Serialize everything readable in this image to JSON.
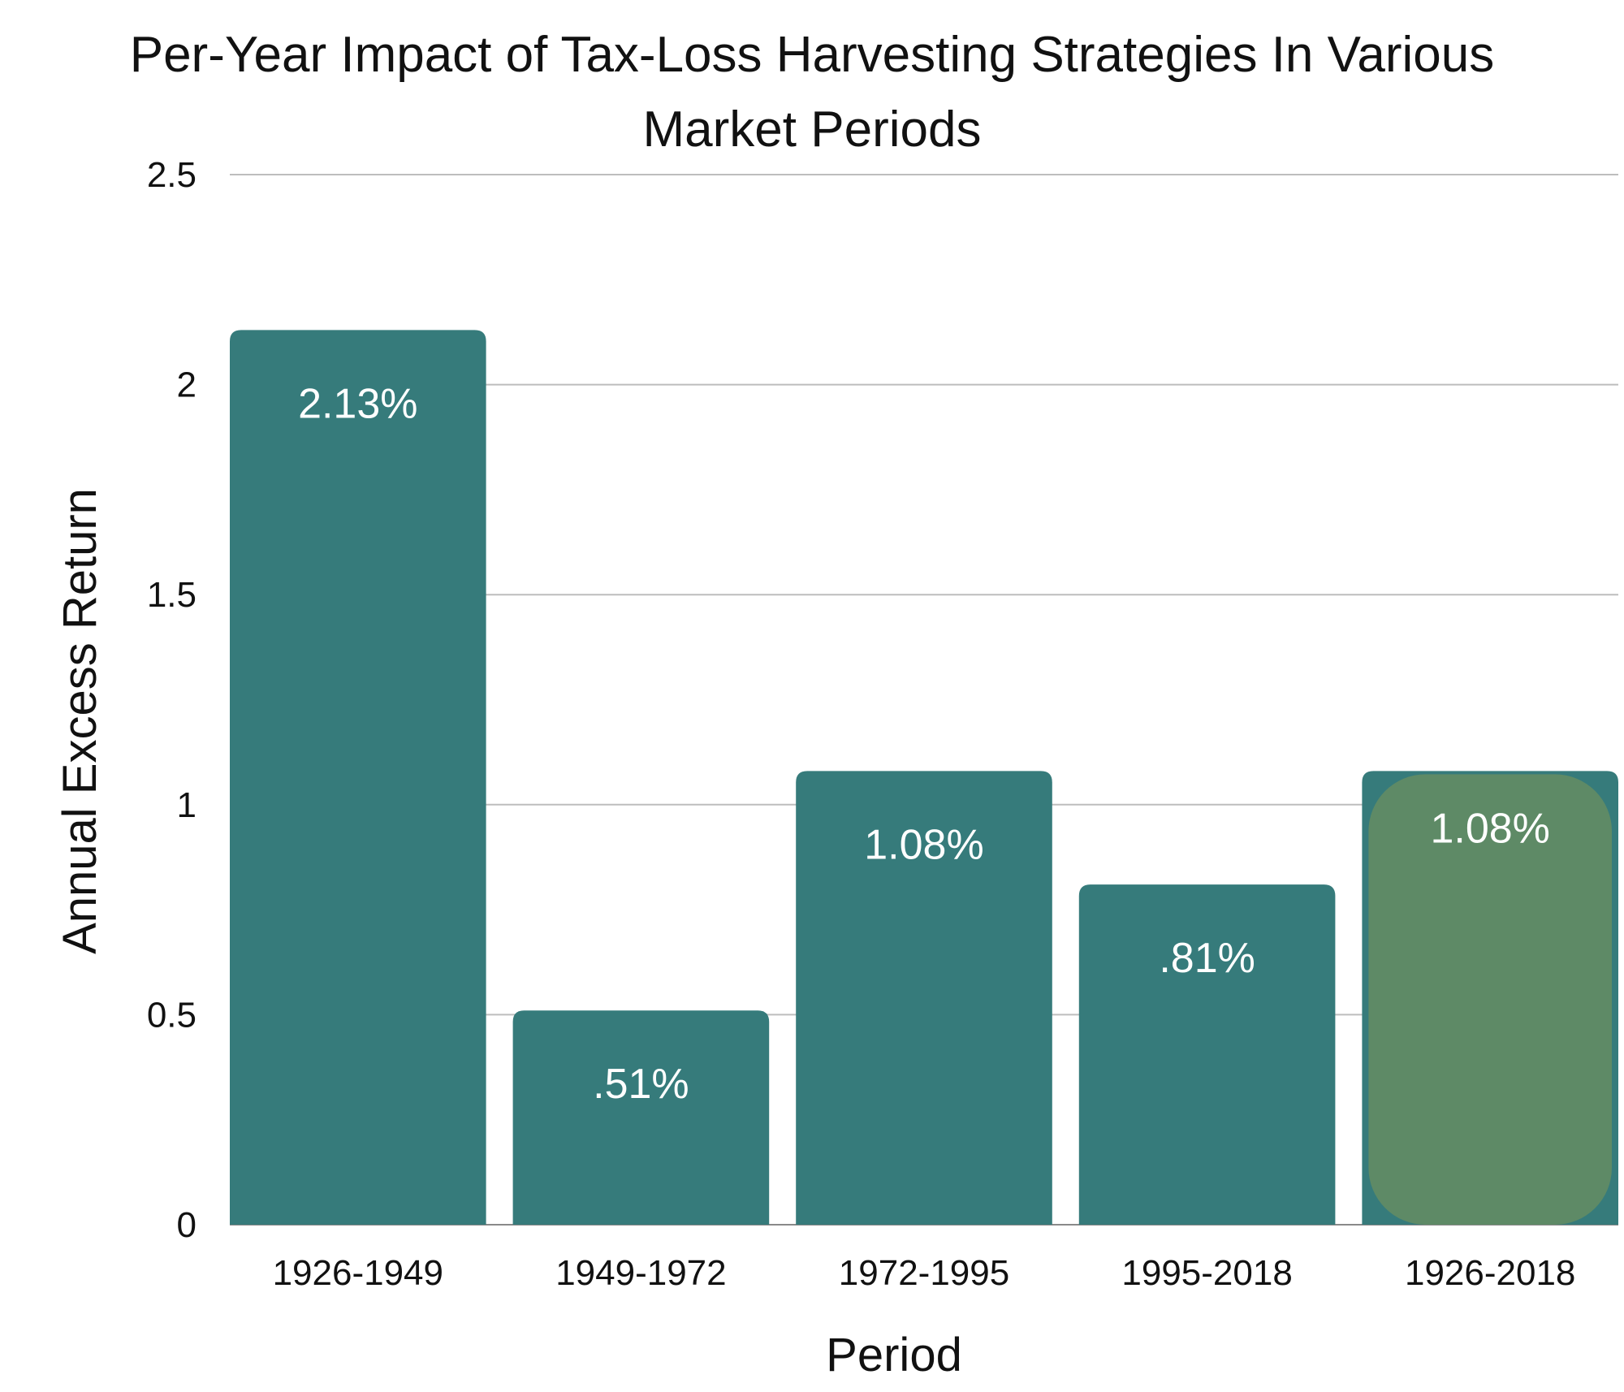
{
  "chart_data": {
    "type": "bar",
    "title_lines": [
      "Per-Year Impact of Tax-Loss Harvesting Strategies In Various",
      "Market Periods"
    ],
    "xlabel": "Period",
    "ylabel": "Annual Excess Return",
    "categories": [
      "1926-1949",
      "1949-1972",
      "1972-1995",
      "1995-2018",
      "1926-2018"
    ],
    "values": [
      2.13,
      0.51,
      1.08,
      0.81,
      1.08
    ],
    "data_labels": [
      "2.13%",
      ".51%",
      "1.08%",
      ".81%",
      "1.08%"
    ],
    "ylim": [
      0,
      2.5
    ],
    "yticks": [
      0,
      0.5,
      1,
      1.5,
      2,
      2.5
    ],
    "ytick_labels": [
      "0",
      "0.5",
      "1",
      "1.5",
      "2",
      "2.5"
    ],
    "grid": true,
    "legend": "none",
    "colors": {
      "bar": "#367b7b",
      "highlight_overlay": "#5e8a66",
      "gridline": "#bdbdbd",
      "text": "#111111",
      "bar_label": "#ffffff"
    },
    "highlight_index": 4
  }
}
